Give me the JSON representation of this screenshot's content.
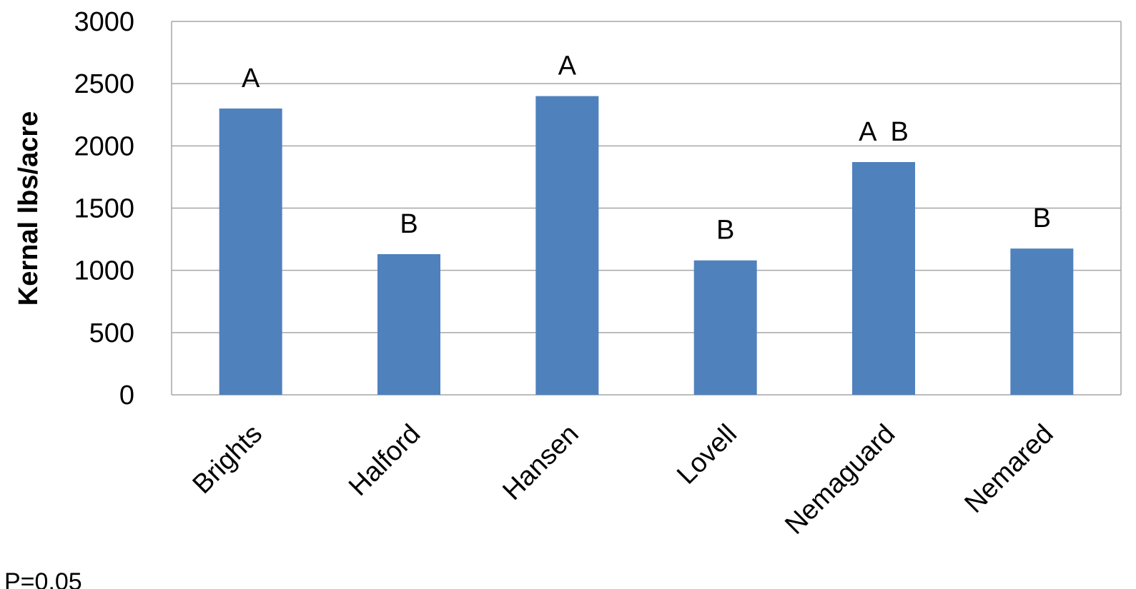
{
  "chart_data": {
    "type": "bar",
    "title": "",
    "xlabel": "",
    "ylabel": "Kernal lbs/acre",
    "ylim": [
      0,
      3000
    ],
    "yticks": [
      0,
      500,
      1000,
      1500,
      2000,
      2500,
      3000
    ],
    "categories": [
      "Brights",
      "Halford",
      "Hansen",
      "Lovell",
      "Nemaguard",
      "Nemared"
    ],
    "values": [
      2300,
      1130,
      2400,
      1080,
      1870,
      1175
    ],
    "significance_labels": [
      "A",
      "B",
      "A",
      "B",
      "A  B",
      "B"
    ],
    "grid": true,
    "legend": "none",
    "bar_color": "#4F81BD",
    "grid_color": "#A6A6A6"
  },
  "footnote": "P=0.05"
}
